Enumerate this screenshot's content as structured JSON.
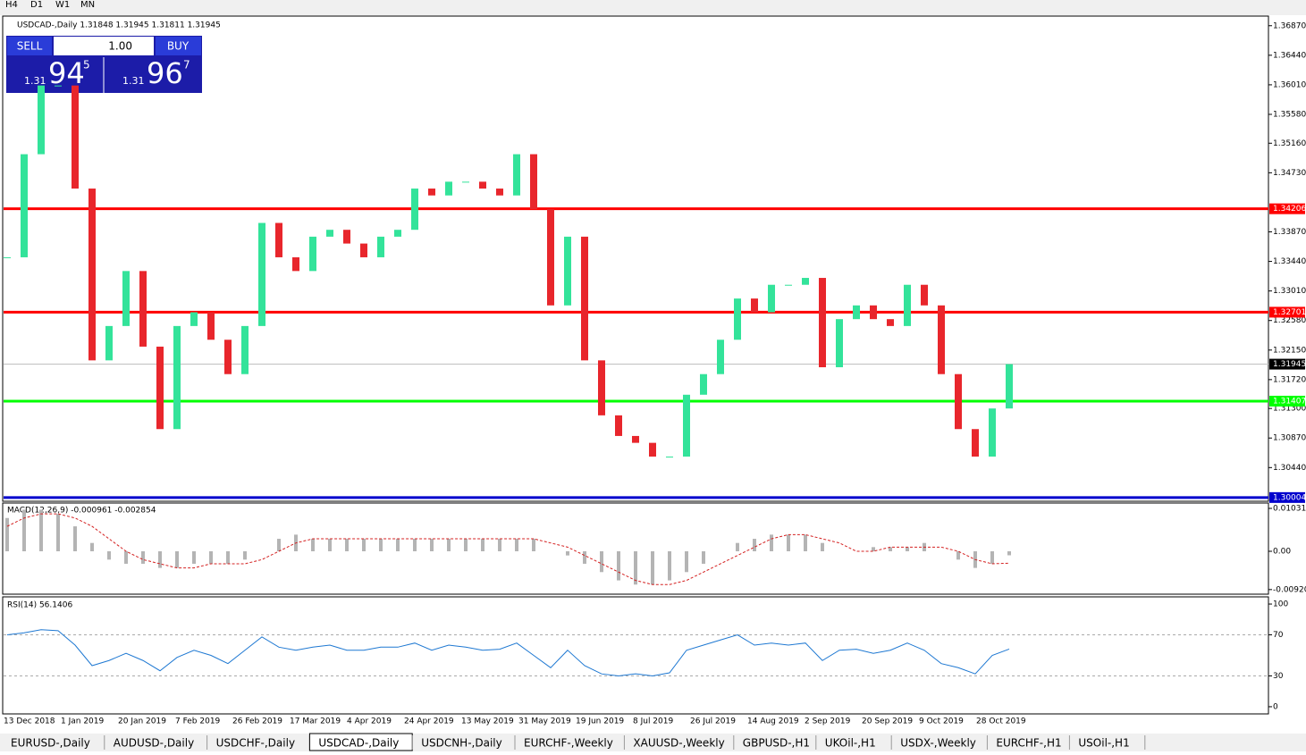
{
  "toolbar": [
    "H4",
    "D1",
    "W1",
    "MN"
  ],
  "header": "USDCAD-,Daily  1.31848 1.31945 1.31811 1.31945",
  "trade_panel": {
    "sell": "SELL",
    "lots": "1.00",
    "buy": "BUY",
    "sell_price": {
      "prefix": "1.31",
      "big": "94",
      "sup": "5"
    },
    "buy_price": {
      "prefix": "1.31",
      "big": "96",
      "sup": "7"
    }
  },
  "dates": [
    "13 Dec 2018",
    "1 Jan 2019",
    "20 Jan 2019",
    "7 Feb 2019",
    "26 Feb 2019",
    "17 Mar 2019",
    "4 Apr 2019",
    "24 Apr 2019",
    "13 May 2019",
    "31 May 2019",
    "19 Jun 2019",
    "8 Jul 2019",
    "26 Jul 2019",
    "14 Aug 2019",
    "2 Sep 2019",
    "20 Sep 2019",
    "9 Oct 2019",
    "28 Oct 2019"
  ],
  "tabs": [
    "EURUSD-,Daily",
    "AUDUSD-,Daily",
    "USDCHF-,Daily",
    "USDCAD-,Daily",
    "USDCNH-,Daily",
    "EURCHF-,Weekly",
    "XAUUSD-,Weekly",
    "GBPUSD-,H1",
    "UKOil-,H1",
    "USDX-,Weekly",
    "EURCHF-,H1",
    "USOil-,H1"
  ],
  "chart_data": [
    {
      "type": "candlestick",
      "up_color": "#33e39a",
      "down_color": "#e8262c",
      "ylim": [
        1.2995,
        1.3701
      ],
      "yticks": [
        {
          "value": 1.3687,
          "label": "1.36870"
        },
        {
          "value": 1.3644,
          "label": "1.36440"
        },
        {
          "value": 1.3601,
          "label": "1.36010"
        },
        {
          "value": 1.3558,
          "label": "1.35580"
        },
        {
          "value": 1.3516,
          "label": "1.35160"
        },
        {
          "value": 1.3473,
          "label": "1.34730"
        },
        {
          "value": 1.3387,
          "label": "1.33870"
        },
        {
          "value": 1.3344,
          "label": "1.33440"
        },
        {
          "value": 1.3301,
          "label": "1.33010"
        },
        {
          "value": 1.3258,
          "label": "1.32580"
        },
        {
          "value": 1.3215,
          "label": "1.32150"
        },
        {
          "value": 1.3172,
          "label": "1.31720"
        },
        {
          "value": 1.313,
          "label": "1.31300"
        },
        {
          "value": 1.3087,
          "label": "1.30870"
        },
        {
          "value": 1.3044,
          "label": "1.30440"
        }
      ],
      "levels": [
        {
          "value": 1.34206,
          "color": "#ff0000"
        },
        {
          "value": 1.32701,
          "color": "#ff0000"
        },
        {
          "value": 1.31945,
          "color": "#c0c0c0"
        },
        {
          "value": 1.31407,
          "color": "#00ff00"
        },
        {
          "value": 1.30004,
          "color": "#0000cd"
        }
      ],
      "values": [
        1.335,
        1.35,
        1.36,
        1.36,
        1.345,
        1.32,
        1.325,
        1.333,
        1.322,
        1.31,
        1.325,
        1.327,
        1.323,
        1.318,
        1.325,
        1.34,
        1.335,
        1.333,
        1.338,
        1.339,
        1.337,
        1.335,
        1.338,
        1.339,
        1.345,
        1.344,
        1.346,
        1.346,
        1.345,
        1.344,
        1.35,
        1.342,
        1.328,
        1.338,
        1.32,
        1.312,
        1.309,
        1.308,
        1.306,
        1.306,
        1.315,
        1.318,
        1.323,
        1.329,
        1.327,
        1.331,
        1.331,
        1.332,
        1.319,
        1.326,
        1.328,
        1.326,
        1.325,
        1.331,
        1.328,
        1.318,
        1.31,
        1.306,
        1.313,
        1.31945
      ]
    },
    {
      "type": "macd",
      "title": "MACD(12,26,9) -0.000961 -0.002854",
      "ylim": [
        -0.01031,
        0.0116
      ],
      "yticks": [
        {
          "value": 0.010311,
          "label": "0.010311"
        },
        {
          "value": 0,
          "label": "0.00"
        },
        {
          "value": -0.009203,
          "label": "-0.009203"
        }
      ],
      "series": [
        {
          "name": "MACD",
          "color": "#b4b4b4",
          "values": [
            0.008,
            0.01,
            0.01,
            0.009,
            0.006,
            0.002,
            -0.002,
            -0.003,
            -0.003,
            -0.004,
            -0.004,
            -0.003,
            -0.003,
            -0.003,
            -0.002,
            0,
            0.003,
            0.004,
            0.003,
            0.003,
            0.003,
            0.003,
            0.003,
            0.003,
            0.003,
            0.003,
            0.003,
            0.003,
            0.003,
            0.003,
            0.003,
            0.003,
            0,
            -0.001,
            -0.003,
            -0.005,
            -0.007,
            -0.008,
            -0.008,
            -0.007,
            -0.005,
            -0.003,
            0,
            0.002,
            0.003,
            0.004,
            0.004,
            0.004,
            0.002,
            0,
            0,
            0.001,
            0.001,
            0.001,
            0.002,
            0,
            -0.002,
            -0.004,
            -0.003,
            -0.000961
          ]
        },
        {
          "name": "Signal",
          "color": "#d42020",
          "values": [
            0.006,
            0.008,
            0.009,
            0.009,
            0.008,
            0.006,
            0.003,
            0,
            -0.002,
            -0.003,
            -0.004,
            -0.004,
            -0.003,
            -0.003,
            -0.003,
            -0.002,
            0,
            0.002,
            0.003,
            0.003,
            0.003,
            0.003,
            0.003,
            0.003,
            0.003,
            0.003,
            0.003,
            0.003,
            0.003,
            0.003,
            0.003,
            0.003,
            0.002,
            0.001,
            -0.001,
            -0.003,
            -0.005,
            -0.007,
            -0.008,
            -0.008,
            -0.007,
            -0.005,
            -0.003,
            -0.001,
            0.001,
            0.003,
            0.004,
            0.004,
            0.003,
            0.002,
            0,
            0,
            0.001,
            0.001,
            0.001,
            0.001,
            0,
            -0.002,
            -0.003,
            -0.002854
          ]
        }
      ]
    },
    {
      "type": "rsi",
      "title": "RSI(14) 56.1406",
      "color": "#1e78d2",
      "ylim": [
        -7,
        107
      ],
      "yticks": [
        100,
        70,
        30,
        0
      ],
      "levels": [
        70,
        30
      ],
      "values": [
        70,
        72,
        75,
        74,
        60,
        40,
        45,
        52,
        45,
        35,
        48,
        55,
        50,
        42,
        55,
        68,
        58,
        55,
        58,
        60,
        55,
        55,
        58,
        58,
        62,
        55,
        60,
        58,
        55,
        56,
        62,
        50,
        38,
        55,
        40,
        32,
        30,
        32,
        30,
        33,
        55,
        60,
        65,
        70,
        60,
        62,
        60,
        62,
        45,
        55,
        56,
        52,
        55,
        62,
        55,
        42,
        38,
        32,
        50,
        56.1406
      ]
    }
  ]
}
